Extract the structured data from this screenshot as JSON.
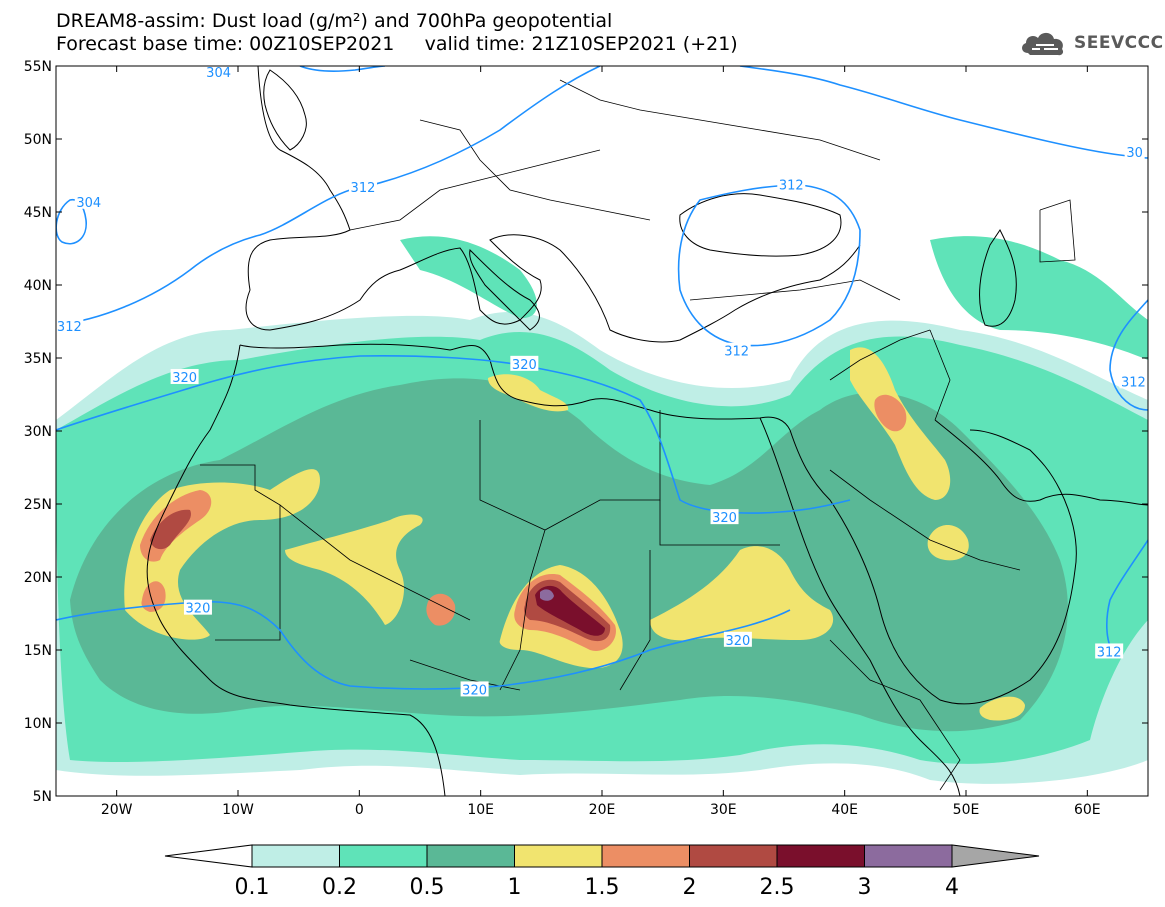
{
  "title": {
    "line1": "DREAM8-assim: Dust load (g/m²) and 700hPa geopotential",
    "line2": "Forecast base time: 00Z10SEP2021     valid time: 21Z10SEP2021 (+21)"
  },
  "logo": {
    "text": "SEEVCCC",
    "icon": "cloud-icon"
  },
  "map": {
    "lon_range": [
      -25,
      65
    ],
    "lat_range": [
      5,
      55
    ],
    "lon_ticks": [
      {
        "value": -20,
        "label": "20W"
      },
      {
        "value": -10,
        "label": "10W"
      },
      {
        "value": 0,
        "label": "0"
      },
      {
        "value": 10,
        "label": "10E"
      },
      {
        "value": 20,
        "label": "20E"
      },
      {
        "value": 30,
        "label": "30E"
      },
      {
        "value": 40,
        "label": "40E"
      },
      {
        "value": 50,
        "label": "50E"
      },
      {
        "value": 60,
        "label": "60E"
      }
    ],
    "lat_ticks": [
      {
        "value": 55,
        "label": "55N"
      },
      {
        "value": 50,
        "label": "50N"
      },
      {
        "value": 45,
        "label": "45N"
      },
      {
        "value": 40,
        "label": "40N"
      },
      {
        "value": 35,
        "label": "35N"
      },
      {
        "value": 30,
        "label": "30N"
      },
      {
        "value": 25,
        "label": "25N"
      },
      {
        "value": 20,
        "label": "20N"
      },
      {
        "value": 15,
        "label": "15N"
      },
      {
        "value": 10,
        "label": "10N"
      },
      {
        "value": 5,
        "label": "5N"
      }
    ],
    "geopotential_labels": [
      {
        "text": "304",
        "lon": -22.3,
        "lat": 45.7
      },
      {
        "text": "304",
        "lon": -11.6,
        "lat": 54.6
      },
      {
        "text": "312",
        "lon": -23.9,
        "lat": 37.2
      },
      {
        "text": "312",
        "lon": 0.3,
        "lat": 46.7
      },
      {
        "text": "312",
        "lon": 35.6,
        "lat": 46.9
      },
      {
        "text": "312",
        "lon": 31.1,
        "lat": 35.5
      },
      {
        "text": "312",
        "lon": 63.8,
        "lat": 33.4
      },
      {
        "text": "312",
        "lon": 61.8,
        "lat": 14.9
      },
      {
        "text": "30",
        "lon": 63.9,
        "lat": 49.1
      },
      {
        "text": "320",
        "lon": 13.6,
        "lat": 34.6
      },
      {
        "text": "320",
        "lon": -14.4,
        "lat": 33.7
      },
      {
        "text": "320",
        "lon": -13.3,
        "lat": 17.9
      },
      {
        "text": "320",
        "lon": 30.1,
        "lat": 24.1
      },
      {
        "text": "320",
        "lon": 31.2,
        "lat": 15.7
      },
      {
        "text": "320",
        "lon": 9.5,
        "lat": 12.3
      }
    ]
  },
  "colorbar": {
    "colors": [
      "#ffffff",
      "#bfeee6",
      "#5fe3b8",
      "#5ab896",
      "#f1e46f",
      "#ec8e64",
      "#b04a42",
      "#7a0f2c",
      "#8c6b9e",
      "#a6a6a6"
    ],
    "labels": [
      "0.1",
      "0.2",
      "0.5",
      "1",
      "1.5",
      "2",
      "2.5",
      "3",
      "4"
    ]
  },
  "colors": {
    "contour": "#1e90ff",
    "coast": "#000000",
    "frame": "#000000"
  }
}
